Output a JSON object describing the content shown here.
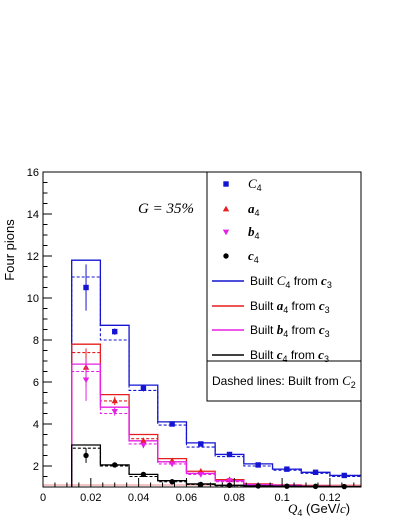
{
  "chart_data": {
    "type": "bar",
    "style": "step-histogram-with-points",
    "ylabel": "Four pions",
    "xlabel": {
      "main": "Q",
      "sub": "4",
      "unit_pre": " (GeV/",
      "unit_it": "c",
      "unit_post": ")"
    },
    "xlim": [
      0,
      0.133
    ],
    "ylim": [
      1,
      16
    ],
    "x_ticks": [
      0,
      0.02,
      0.04,
      0.06,
      0.08,
      0.1,
      0.12
    ],
    "x_tick_labels": [
      "0",
      "0.02",
      "0.04",
      "0.06",
      "0.08",
      "0.1",
      "0.12"
    ],
    "y_ticks": [
      2,
      4,
      6,
      8,
      10,
      12,
      14,
      16
    ],
    "y_tick_labels": [
      "2",
      "4",
      "6",
      "8",
      "10",
      "12",
      "14",
      "16"
    ],
    "annotation": "G = 35%",
    "bin_edges": [
      0.012,
      0.024,
      0.036,
      0.048,
      0.06,
      0.072,
      0.084,
      0.096,
      0.108,
      0.12,
      0.133
    ],
    "series": [
      {
        "name": "C4",
        "kind": "points",
        "marker": "square",
        "color": "#1414d2",
        "x": [
          0.018,
          0.03,
          0.042,
          0.054,
          0.066,
          0.078,
          0.09,
          0.102,
          0.114,
          0.126
        ],
        "y": [
          10.5,
          8.4,
          5.7,
          4.0,
          3.05,
          2.55,
          2.05,
          1.85,
          1.7,
          1.55
        ],
        "err": [
          1.1,
          0.15,
          0.15,
          0.08,
          0.06,
          0.05,
          0.04,
          0.03,
          0.03,
          0.03
        ]
      },
      {
        "name": "a4",
        "kind": "points",
        "marker": "triangle-up",
        "color": "#e61e1e",
        "x": [
          0.018,
          0.03,
          0.042,
          0.054,
          0.066,
          0.078
        ],
        "y": [
          6.7,
          5.1,
          3.2,
          2.25,
          1.75,
          1.35
        ],
        "err": [
          0.9,
          0.2,
          0.15,
          0.06,
          0.05,
          0.04
        ]
      },
      {
        "name": "b4",
        "kind": "points",
        "marker": "triangle-down",
        "color": "#e620e6",
        "x": [
          0.018,
          0.03,
          0.042,
          0.054,
          0.066,
          0.078
        ],
        "y": [
          6.1,
          4.6,
          3.0,
          2.1,
          1.6,
          1.3
        ],
        "err": [
          1.0,
          0.2,
          0.15,
          0.06,
          0.05,
          0.04
        ]
      },
      {
        "name": "c4",
        "kind": "points",
        "marker": "circle",
        "color": "#000000",
        "x": [
          0.018,
          0.03,
          0.042,
          0.054,
          0.066,
          0.078,
          0.09,
          0.102,
          0.114,
          0.126
        ],
        "y": [
          2.5,
          2.05,
          1.6,
          1.25,
          1.12,
          1.08,
          1.05,
          1.04,
          1.03,
          1.02
        ],
        "err": [
          0.35,
          0.05,
          0.05,
          0.03,
          0.02,
          0.02,
          0.02,
          0.01,
          0.01,
          0.01
        ]
      },
      {
        "name": "Built C4 from c3",
        "kind": "hist",
        "color": "#1414d2",
        "solid": [
          11.8,
          8.7,
          5.85,
          4.1,
          3.1,
          2.55,
          2.1,
          1.85,
          1.7,
          1.55
        ],
        "dashed": [
          11.0,
          8.0,
          5.6,
          3.95,
          2.9,
          2.45,
          2.0,
          1.8,
          1.65,
          1.5
        ]
      },
      {
        "name": "Built a4 from c3",
        "kind": "hist",
        "color": "#e61e1e",
        "solid": [
          7.8,
          5.4,
          3.5,
          2.35,
          1.75,
          1.35,
          1.15,
          1.1,
          1.05,
          1.03
        ],
        "dashed": [
          7.4,
          5.1,
          3.3,
          2.2,
          1.65,
          1.3,
          1.12,
          1.08,
          1.04,
          1.02
        ]
      },
      {
        "name": "Built b4 from c3",
        "kind": "hist",
        "color": "#e620e6",
        "solid": [
          6.85,
          4.8,
          3.2,
          2.2,
          1.65,
          1.3,
          1.12,
          1.08,
          1.04,
          1.02
        ],
        "dashed": [
          6.5,
          4.5,
          3.05,
          2.1,
          1.6,
          1.25,
          1.1,
          1.06,
          1.03,
          1.01
        ]
      },
      {
        "name": "Built c4 from c3",
        "kind": "hist",
        "color": "#000000",
        "solid": [
          3.0,
          2.05,
          1.6,
          1.3,
          1.15,
          1.08,
          1.05,
          1.04,
          1.03,
          1.02
        ],
        "dashed": [
          2.85,
          2.0,
          1.5,
          1.25,
          1.12,
          1.06,
          1.04,
          1.03,
          1.02,
          1.01
        ]
      }
    ],
    "legend": {
      "placement": "top-right",
      "entries": [
        {
          "label_main": "C",
          "label_sub": "4",
          "label_prefix": "",
          "label_suffix": ""
        },
        {
          "label_main": "a",
          "label_sub": "4",
          "label_prefix": "",
          "label_suffix": ""
        },
        {
          "label_main": "b",
          "label_sub": "4",
          "label_prefix": "",
          "label_suffix": ""
        },
        {
          "label_main": "c",
          "label_sub": "4",
          "label_prefix": "",
          "label_suffix": ""
        },
        {
          "label_prefix": "Built ",
          "label_main": "C",
          "label_sub": "4",
          "label_suffix": " from c",
          "label_suffix_sub": "3"
        },
        {
          "label_prefix": "Built ",
          "label_main": "a",
          "label_sub": "4",
          "label_suffix": " from c",
          "label_suffix_sub": "3"
        },
        {
          "label_prefix": "Built ",
          "label_main": "b",
          "label_sub": "4",
          "label_suffix": " from c",
          "label_suffix_sub": "3"
        },
        {
          "label_prefix": "Built ",
          "label_main": "c",
          "label_sub": "4",
          "label_suffix": " from c",
          "label_suffix_sub": "3"
        }
      ],
      "footer_prefix": "Dashed lines: Built from ",
      "footer_main": "C",
      "footer_sub": "2"
    }
  }
}
